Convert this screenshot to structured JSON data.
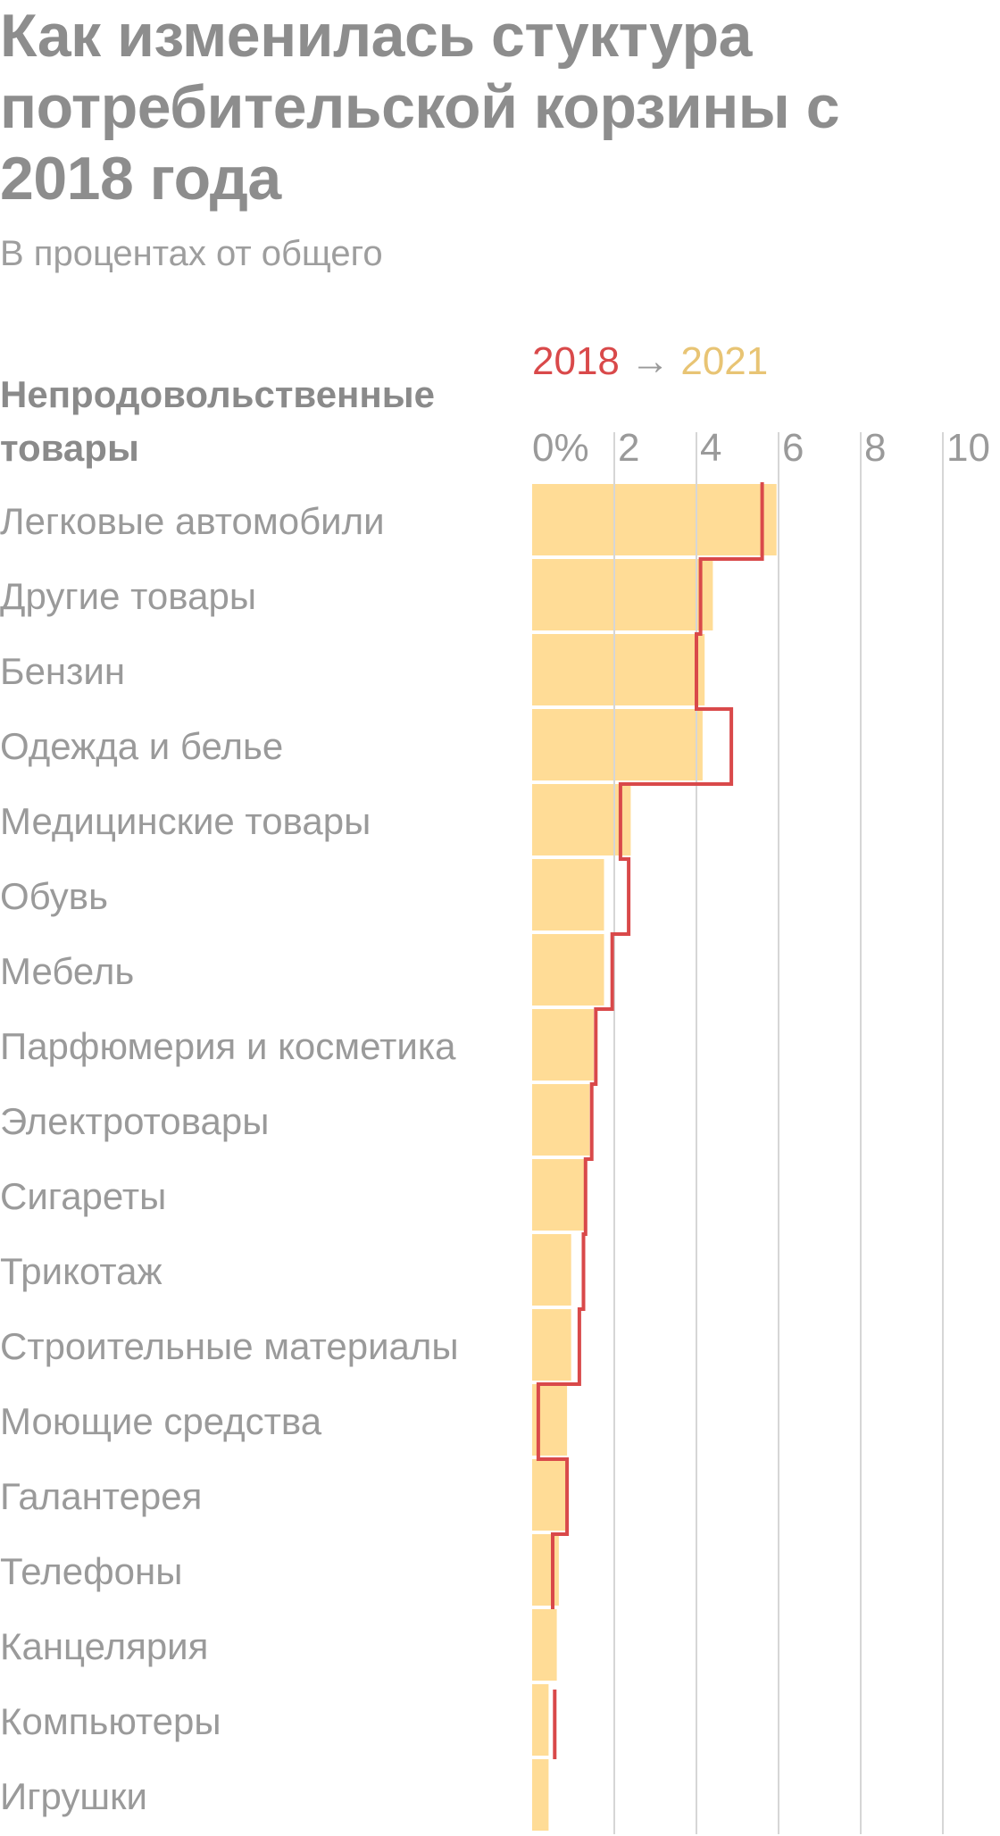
{
  "title": "Как изменилась стуктура потребительской корзины с 2018 года",
  "subtitle": "В процентах от общего",
  "section_label": "Непродовольственные товары",
  "legend": {
    "from": "2018",
    "arrow": "→",
    "to": "2021"
  },
  "colors": {
    "bar_2021": "#ffdc96",
    "line_2018": "#d9494a",
    "grid": "#d6d6d6",
    "text": "#9a9a9a"
  },
  "chart_data": {
    "type": "bar",
    "orientation": "horizontal",
    "xlim": [
      0,
      10
    ],
    "tick_labels": [
      "0%",
      "2",
      "4",
      "6",
      "8",
      "10"
    ],
    "tick_values": [
      0,
      2,
      4,
      6,
      8,
      10
    ],
    "grid": true,
    "categories": [
      "Легковые автомобили",
      "Другие товары",
      "Бензин",
      "Одежда и белье",
      "Медицинские товары",
      "Обувь",
      "Мебель",
      "Парфюмерия и косметика",
      "Электротовары",
      "Сигареты",
      "Трикотаж",
      "Строительные материалы",
      "Моющие средства",
      "Галантерея",
      "Телефоны",
      "Канцелярия",
      "Компьютеры",
      "Игрушки"
    ],
    "series": [
      {
        "name": "2021",
        "type": "bar",
        "values": [
          5.95,
          4.4,
          4.2,
          4.15,
          2.4,
          1.75,
          1.75,
          1.5,
          1.4,
          1.3,
          0.95,
          0.95,
          0.85,
          0.85,
          0.65,
          0.6,
          0.4,
          0.4
        ]
      },
      {
        "name": "2018",
        "type": "step-line",
        "values": [
          5.6,
          4.1,
          4.0,
          4.85,
          2.15,
          2.35,
          1.95,
          1.55,
          1.45,
          1.3,
          1.25,
          1.15,
          0.15,
          0.85,
          0.5,
          null,
          0.55,
          null
        ]
      }
    ]
  }
}
